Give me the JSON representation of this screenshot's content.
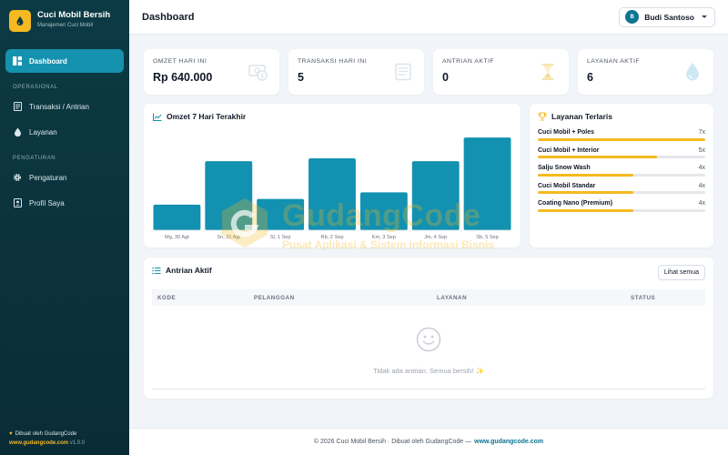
{
  "brand": {
    "title": "Cuci Mobil Bersih",
    "subtitle": "Manajemen Cuci Mobil"
  },
  "sidebar": {
    "items": [
      {
        "label": "Dashboard",
        "icon": "dashboard-icon",
        "active": true
      },
      {
        "label": "Transaksi / Antrian",
        "icon": "receipt-icon"
      },
      {
        "label": "Layanan",
        "icon": "droplet-icon"
      },
      {
        "label": "Pengaturan",
        "icon": "gear-icon"
      },
      {
        "label": "Profil Saya",
        "icon": "id-badge-icon"
      }
    ],
    "sections": [
      "OPERASIONAL",
      "PENGATURAN"
    ],
    "footer": {
      "line1": "Dibuat oleh GudangCode",
      "link": "www.gudangcode.com",
      "version": "v1.0.0"
    }
  },
  "header": {
    "title": "Dashboard",
    "user": {
      "name": "Budi Santoso",
      "initial": "B"
    }
  },
  "stats": [
    {
      "label": "OMZET HARI INI",
      "value": "Rp 640.000",
      "icon": "money-icon"
    },
    {
      "label": "TRANSAKSI HARI INI",
      "value": "5",
      "icon": "receipt-icon"
    },
    {
      "label": "ANTRIAN AKTIF",
      "value": "0",
      "icon": "hourglass-icon"
    },
    {
      "label": "LAYANAN AKTIF",
      "value": "6",
      "icon": "droplet-icon"
    }
  ],
  "revenue_card": {
    "title": "Omzet 7 Hari Terakhir"
  },
  "chart_data": {
    "type": "bar",
    "title": "Omzet 7 Hari Terakhir",
    "categories": [
      "Mg, 30 Agt",
      "Sn, 31 Agt",
      "Sl, 1 Sep",
      "Rb, 2 Sep",
      "Km, 3 Sep",
      "Jm, 4 Sep",
      "Sb, 5 Sep"
    ],
    "values": [
      270000,
      730000,
      330000,
      760000,
      400000,
      730000,
      980000
    ],
    "ylim": [
      0,
      1000000
    ],
    "grid": false,
    "color": "#1391b0"
  },
  "top_services": {
    "title": "Layanan Terlaris",
    "max": 7,
    "items": [
      {
        "name": "Cuci Mobil + Poles",
        "count": "7x",
        "value": 7
      },
      {
        "name": "Cuci Mobil + Interior",
        "count": "5x",
        "value": 5
      },
      {
        "name": "Salju Snow Wash",
        "count": "4x",
        "value": 4
      },
      {
        "name": "Cuci Mobil Standar",
        "count": "4x",
        "value": 4
      },
      {
        "name": "Coating Nano (Premium)",
        "count": "4x",
        "value": 4
      }
    ]
  },
  "queue": {
    "title": "Antrian Aktif",
    "see_all": "Lihat semua",
    "columns": [
      "KODE",
      "PELANGGAN",
      "LAYANAN",
      "STATUS"
    ],
    "empty_text": "Tidak ada antrian. Semua bersih! ✨"
  },
  "footer": {
    "text": "© 2026 Cuci Mobil Bersih · Dibuat oleh GudangCode —",
    "link": "www.gudangcode.com"
  },
  "watermark": {
    "title": "GudangCode",
    "subtitle": "Pusat Aplikasi & Sistem Informasi Bisnis"
  },
  "colors": {
    "accent": "#1492ae",
    "brand": "#f5b921",
    "sidebar": "#0c3a44"
  }
}
